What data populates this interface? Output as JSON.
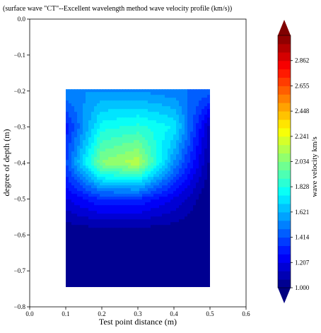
{
  "chart_data": {
    "type": "heatmap",
    "title": "(surface wave \"CT\"--Excellent wavelength method wave velocity profile (km/s))",
    "xlabel": "Test point distance (m)",
    "ylabel": "degree of depth (m)",
    "xlim": [
      0.0,
      0.6
    ],
    "ylim": [
      -0.8,
      0.0
    ],
    "x_ticks": [
      "0.0",
      "0.1",
      "0.2",
      "0.3",
      "0.4",
      "0.5",
      "0.6"
    ],
    "y_ticks": [
      "0.0",
      "−0.1",
      "−0.2",
      "−0.3",
      "−0.4",
      "−0.5",
      "−0.6",
      "−0.7",
      "−0.8"
    ],
    "data_extent": {
      "x": [
        0.1,
        0.5
      ],
      "y": [
        -0.745,
        -0.195
      ]
    },
    "x": [
      0.1,
      0.2,
      0.3,
      0.4,
      0.5
    ],
    "y": [
      -0.2,
      -0.3,
      -0.4,
      -0.5,
      -0.6,
      -0.7
    ],
    "z": [
      [
        1.55,
        1.55,
        1.55,
        1.5,
        1.45
      ],
      [
        1.3,
        1.8,
        1.85,
        1.75,
        1.1
      ],
      [
        1.4,
        2.05,
        2.15,
        1.55,
        1.05
      ],
      [
        1.2,
        1.35,
        1.35,
        1.2,
        1.0
      ],
      [
        1.0,
        1.0,
        1.0,
        1.0,
        1.0
      ],
      [
        1.0,
        1.0,
        1.0,
        1.0,
        1.0
      ]
    ],
    "colorbar": {
      "label": "wave velocity  km/s",
      "vmin": 1.0,
      "vmax": 3.069,
      "ticks": [
        "1.000",
        "1.207",
        "1.414",
        "1.621",
        "1.828",
        "2.034",
        "2.241",
        "2.448",
        "2.655",
        "2.862"
      ],
      "extend": "both",
      "colormap": "jet"
    }
  }
}
